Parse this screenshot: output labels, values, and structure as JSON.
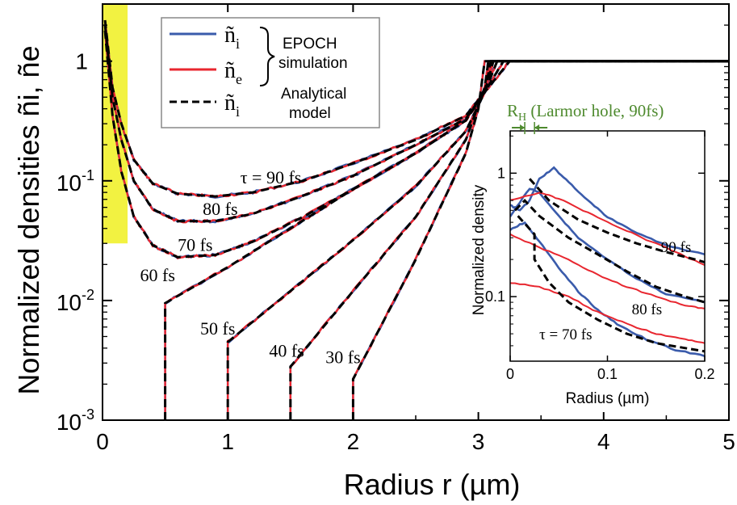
{
  "chart_data": [
    {
      "type": "line",
      "xlabel": "Radius r (µm)",
      "ylabel": "Normalized densities ñi, ñe",
      "xlim": [
        0,
        5
      ],
      "ylim": [
        0.001,
        3
      ],
      "y_scale": "log",
      "x_ticks": [
        "0",
        "1",
        "2",
        "3",
        "4",
        "5"
      ],
      "y_ticks": [
        {
          "value": 1,
          "label": "1"
        },
        {
          "value": 0.1,
          "label": "10",
          "exp": "-1"
        },
        {
          "value": 0.01,
          "label": "10",
          "exp": "-2"
        },
        {
          "value": 0.001,
          "label": "10",
          "exp": "-3"
        }
      ],
      "legend": {
        "placement": "top-left",
        "entries": [
          {
            "label": "ñ",
            "sub": "i",
            "style": "blue"
          },
          {
            "label": "ñ",
            "sub": "e",
            "style": "red"
          },
          {
            "label": "ñ",
            "sub": "i",
            "style": "dashed"
          }
        ],
        "group_labels": [
          "EPOCH",
          "simulation",
          "Analytical",
          "model"
        ]
      },
      "highlight_region": {
        "x": [
          0,
          0.2
        ],
        "y": [
          0.03,
          3
        ],
        "color": "#f0f020"
      },
      "annotations": [
        {
          "text": "τ = 90 fs",
          "x": 1.1,
          "y": 0.095
        },
        {
          "text": "80 fs",
          "x": 0.8,
          "y": 0.052
        },
        {
          "text": "70 fs",
          "x": 0.6,
          "y": 0.026
        },
        {
          "text": "60 fs",
          "x": 0.3,
          "y": 0.0145
        },
        {
          "text": "50 fs",
          "x": 0.78,
          "y": 0.0052
        },
        {
          "text": "40 fs",
          "x": 1.33,
          "y": 0.0034
        },
        {
          "text": "30 fs",
          "x": 1.78,
          "y": 0.003
        }
      ],
      "series": [
        {
          "name": "τ = 90 fs",
          "points": [
            [
              0.02,
              2.2
            ],
            [
              0.08,
              0.6
            ],
            [
              0.15,
              0.3
            ],
            [
              0.25,
              0.15
            ],
            [
              0.4,
              0.095
            ],
            [
              0.6,
              0.078
            ],
            [
              0.9,
              0.074
            ],
            [
              1.2,
              0.08
            ],
            [
              1.6,
              0.1
            ],
            [
              2.0,
              0.14
            ],
            [
              2.5,
              0.22
            ],
            [
              2.9,
              0.35
            ],
            [
              3.05,
              0.55
            ],
            [
              3.25,
              1.0
            ],
            [
              5.0,
              1.0
            ]
          ]
        },
        {
          "name": "80 fs",
          "points": [
            [
              0.02,
              2.0
            ],
            [
              0.08,
              0.5
            ],
            [
              0.15,
              0.22
            ],
            [
              0.25,
              0.1
            ],
            [
              0.4,
              0.058
            ],
            [
              0.6,
              0.046
            ],
            [
              0.9,
              0.046
            ],
            [
              1.2,
              0.053
            ],
            [
              1.6,
              0.075
            ],
            [
              2.0,
              0.11
            ],
            [
              2.5,
              0.2
            ],
            [
              2.9,
              0.33
            ],
            [
              3.05,
              0.55
            ],
            [
              3.2,
              1.0
            ],
            [
              5.0,
              1.0
            ]
          ]
        },
        {
          "name": "70 fs",
          "points": [
            [
              0.02,
              1.8
            ],
            [
              0.08,
              0.35
            ],
            [
              0.15,
              0.12
            ],
            [
              0.25,
              0.05
            ],
            [
              0.4,
              0.029
            ],
            [
              0.6,
              0.023
            ],
            [
              0.9,
              0.024
            ],
            [
              1.2,
              0.031
            ],
            [
              1.6,
              0.05
            ],
            [
              2.0,
              0.085
            ],
            [
              2.5,
              0.17
            ],
            [
              2.9,
              0.32
            ],
            [
              3.05,
              0.55
            ],
            [
              3.15,
              1.0
            ],
            [
              5.0,
              1.0
            ]
          ]
        },
        {
          "name": "60 fs",
          "points": [
            [
              0.5,
              0.001
            ],
            [
              0.5,
              0.0095
            ],
            [
              1.0,
              0.019
            ],
            [
              1.5,
              0.04
            ],
            [
              2.0,
              0.085
            ],
            [
              2.5,
              0.17
            ],
            [
              2.9,
              0.32
            ],
            [
              3.05,
              0.55
            ],
            [
              3.12,
              1.0
            ],
            [
              5.0,
              1.0
            ]
          ]
        },
        {
          "name": "50 fs",
          "points": [
            [
              1.0,
              0.001
            ],
            [
              1.0,
              0.0045
            ],
            [
              1.5,
              0.012
            ],
            [
              2.0,
              0.032
            ],
            [
              2.5,
              0.09
            ],
            [
              2.9,
              0.26
            ],
            [
              3.05,
              0.55
            ],
            [
              3.1,
              1.0
            ],
            [
              5.0,
              1.0
            ]
          ]
        },
        {
          "name": "40 fs",
          "points": [
            [
              1.5,
              0.001
            ],
            [
              1.5,
              0.0028
            ],
            [
              2.0,
              0.012
            ],
            [
              2.5,
              0.05
            ],
            [
              2.9,
              0.22
            ],
            [
              3.05,
              0.6
            ],
            [
              3.08,
              1.0
            ],
            [
              5.0,
              1.0
            ]
          ]
        },
        {
          "name": "30 fs",
          "points": [
            [
              2.0,
              0.001
            ],
            [
              2.0,
              0.0022
            ],
            [
              2.5,
              0.022
            ],
            [
              2.9,
              0.17
            ],
            [
              3.0,
              0.4
            ],
            [
              3.05,
              1.0
            ],
            [
              5.0,
              1.0
            ]
          ]
        }
      ]
    },
    {
      "type": "line",
      "xlabel": "Radius (µm)",
      "ylabel": "Normalized density",
      "xlim": [
        0,
        0.2
      ],
      "ylim": [
        0.03,
        2.2
      ],
      "y_scale": "log",
      "x_ticks": [
        "0",
        "0.1",
        "0.2"
      ],
      "y_ticks": [
        {
          "value": 1,
          "label": "1"
        },
        {
          "value": 0.1,
          "label": "0.1"
        }
      ],
      "annotations": [
        {
          "text": "90 fs",
          "x": 0.155,
          "y": 0.23
        },
        {
          "text": "80 fs",
          "x": 0.125,
          "y": 0.072
        },
        {
          "text": "τ = 70 fs",
          "x": 0.03,
          "y": 0.045
        }
      ],
      "larmor_hole": {
        "text": "R",
        "sub": "H",
        "tail": " (Larmor hole, 90fs)",
        "x": [
          0.015,
          0.025
        ],
        "color": "#4e8a2e"
      },
      "series": [
        {
          "name": "90 fs",
          "kind": "dashed",
          "points": [
            [
              0.02,
              0.9
            ],
            [
              0.04,
              0.6
            ],
            [
              0.07,
              0.42
            ],
            [
              0.1,
              0.33
            ],
            [
              0.13,
              0.27
            ],
            [
              0.16,
              0.23
            ],
            [
              0.19,
              0.2
            ],
            [
              0.2,
              0.19
            ]
          ]
        },
        {
          "name": "80 fs",
          "kind": "dashed",
          "points": [
            [
              0.005,
              0.5
            ],
            [
              0.015,
              0.6
            ],
            [
              0.03,
              0.45
            ],
            [
              0.06,
              0.3
            ],
            [
              0.09,
              0.22
            ],
            [
              0.12,
              0.16
            ],
            [
              0.15,
              0.12
            ],
            [
              0.18,
              0.1
            ],
            [
              0.2,
              0.09
            ]
          ]
        },
        {
          "name": "70 fs",
          "kind": "dashed",
          "points": [
            [
              0.008,
              0.45
            ],
            [
              0.025,
              0.32
            ],
            [
              0.025,
              0.2
            ],
            [
              0.04,
              0.13
            ],
            [
              0.06,
              0.09
            ],
            [
              0.09,
              0.065
            ],
            [
              0.12,
              0.05
            ],
            [
              0.15,
              0.042
            ],
            [
              0.2,
              0.036
            ]
          ]
        },
        {
          "name": "90 fs",
          "kind": "blue",
          "points": [
            [
              0,
              0.55
            ],
            [
              0.01,
              0.5
            ],
            [
              0.02,
              0.6
            ],
            [
              0.03,
              0.9
            ],
            [
              0.045,
              1.1
            ],
            [
              0.06,
              0.85
            ],
            [
              0.08,
              0.6
            ],
            [
              0.1,
              0.44
            ],
            [
              0.13,
              0.33
            ],
            [
              0.16,
              0.26
            ],
            [
              0.2,
              0.22
            ]
          ]
        },
        {
          "name": "80 fs",
          "kind": "blue",
          "points": [
            [
              0,
              0.45
            ],
            [
              0.02,
              0.75
            ],
            [
              0.03,
              0.7
            ],
            [
              0.05,
              0.45
            ],
            [
              0.07,
              0.3
            ],
            [
              0.1,
              0.2
            ],
            [
              0.13,
              0.14
            ],
            [
              0.16,
              0.105
            ],
            [
              0.2,
              0.09
            ]
          ]
        },
        {
          "name": "70 fs",
          "kind": "blue",
          "points": [
            [
              0,
              0.35
            ],
            [
              0.015,
              0.4
            ],
            [
              0.03,
              0.28
            ],
            [
              0.05,
              0.17
            ],
            [
              0.07,
              0.11
            ],
            [
              0.09,
              0.078
            ],
            [
              0.11,
              0.06
            ],
            [
              0.14,
              0.045
            ],
            [
              0.17,
              0.037
            ],
            [
              0.2,
              0.033
            ]
          ]
        },
        {
          "name": "90 fs",
          "kind": "red",
          "points": [
            [
              0,
              0.6
            ],
            [
              0.03,
              0.7
            ],
            [
              0.05,
              0.62
            ],
            [
              0.08,
              0.48
            ],
            [
              0.11,
              0.37
            ],
            [
              0.14,
              0.29
            ],
            [
              0.17,
              0.23
            ],
            [
              0.2,
              0.18
            ]
          ]
        },
        {
          "name": "80 fs",
          "kind": "red",
          "points": [
            [
              0,
              0.32
            ],
            [
              0.03,
              0.25
            ],
            [
              0.06,
              0.2
            ],
            [
              0.09,
              0.15
            ],
            [
              0.12,
              0.12
            ],
            [
              0.15,
              0.1
            ],
            [
              0.18,
              0.085
            ],
            [
              0.2,
              0.08
            ]
          ]
        },
        {
          "name": "70 fs",
          "kind": "red",
          "points": [
            [
              0,
              0.13
            ],
            [
              0.03,
              0.12
            ],
            [
              0.06,
              0.1
            ],
            [
              0.09,
              0.075
            ],
            [
              0.12,
              0.06
            ],
            [
              0.15,
              0.05
            ],
            [
              0.18,
              0.045
            ],
            [
              0.2,
              0.042
            ]
          ]
        }
      ]
    }
  ]
}
